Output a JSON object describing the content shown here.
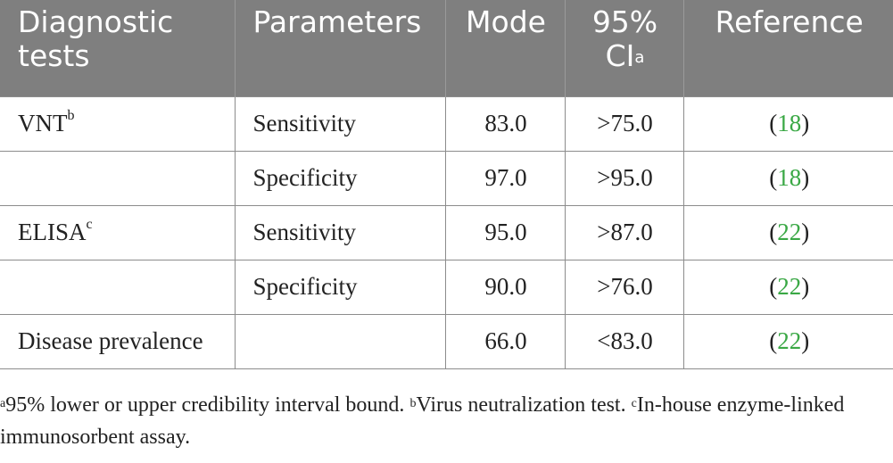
{
  "table": {
    "headers": [
      {
        "text": "Diagnostic tests",
        "sup": ""
      },
      {
        "text": "Parameters",
        "sup": ""
      },
      {
        "text": "Mode",
        "sup": ""
      },
      {
        "text": "95% CI",
        "sup": "a"
      },
      {
        "text": "Reference",
        "sup": ""
      }
    ],
    "rows": [
      {
        "test": "VNT",
        "test_sup": "b",
        "parameter": "Sensitivity",
        "mode": "83.0",
        "ci": ">75.0",
        "ref_open": "(",
        "ref": "18",
        "ref_close": ")"
      },
      {
        "test": "",
        "test_sup": "",
        "parameter": "Specificity",
        "mode": "97.0",
        "ci": ">95.0",
        "ref_open": "(",
        "ref": "18",
        "ref_close": ")"
      },
      {
        "test": "ELISA",
        "test_sup": "c",
        "parameter": "Sensitivity",
        "mode": "95.0",
        "ci": ">87.0",
        "ref_open": "(",
        "ref": "22",
        "ref_close": ")"
      },
      {
        "test": "",
        "test_sup": "",
        "parameter": "Specificity",
        "mode": "90.0",
        "ci": ">76.0",
        "ref_open": "(",
        "ref": "22",
        "ref_close": ")"
      },
      {
        "test": "Disease prevalence",
        "test_sup": "",
        "parameter": "",
        "mode": "66.0",
        "ci": "<83.0",
        "ref_open": "(",
        "ref": "22",
        "ref_close": ")"
      }
    ]
  },
  "footnotes": [
    {
      "mark": "a",
      "text": "95% lower or upper credibility interval bound. "
    },
    {
      "mark": "b",
      "text": "Virus neutralization test. "
    },
    {
      "mark": "c",
      "text": "In-house enzyme-linked immunosorbent assay."
    }
  ],
  "colors": {
    "header_bg": "#7f7f7f",
    "header_text": "#ffffff",
    "reference_link": "#3aa845",
    "border": "#8c8c8c"
  }
}
